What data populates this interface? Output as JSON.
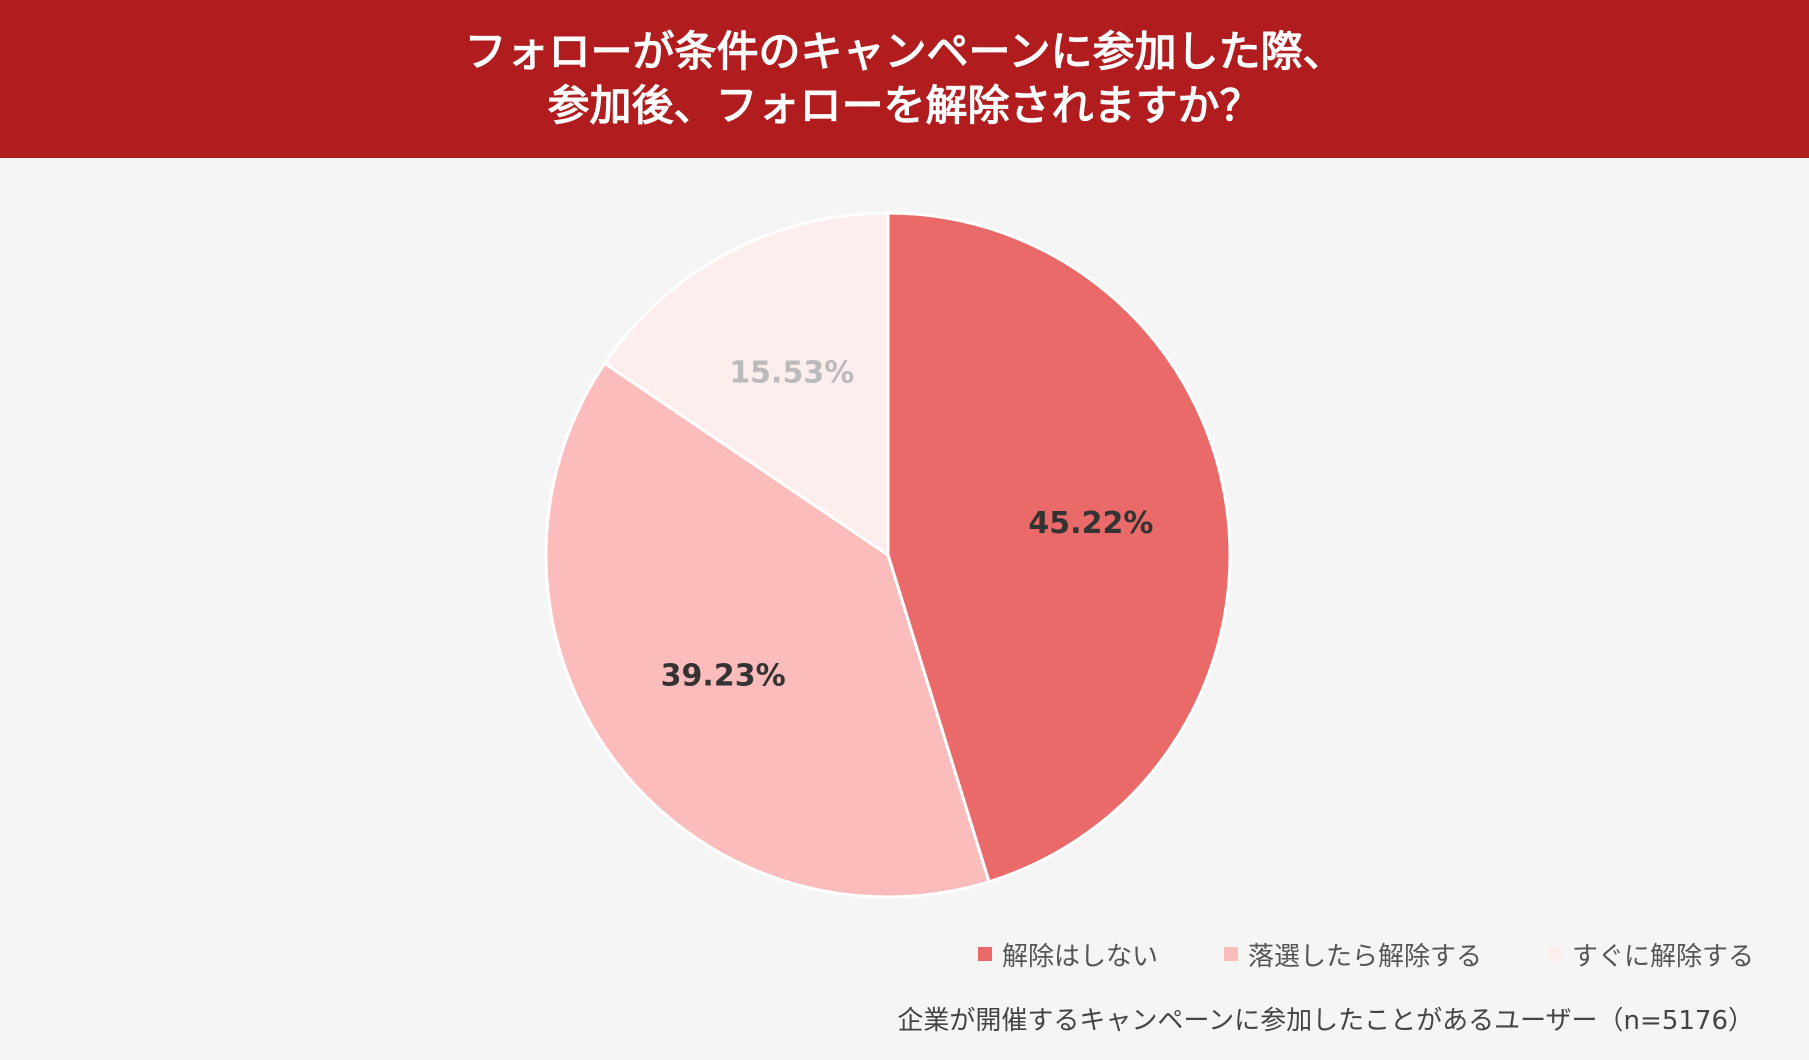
{
  "header": {
    "title_line1": "フォローが条件のキャンペーンに参加した際、",
    "title_line2": "参加後、フォローを解除されますか？",
    "background": "#b11d1f"
  },
  "chart_data": {
    "type": "pie",
    "title": "フォローが条件のキャンペーンに参加した際、参加後、フォローを解除されますか？",
    "slices": [
      {
        "label": "解除はしない",
        "value": 45.22,
        "display": "45.22%",
        "color": "#ea6a6a",
        "label_color": "#333333"
      },
      {
        "label": "落選したら解除する",
        "value": 39.23,
        "display": "39.23%",
        "color": "#fcbcbc",
        "label_color": "#333333"
      },
      {
        "label": "すぐに解除する",
        "value": 15.53,
        "display": "15.53%",
        "color": "#fdeeee",
        "label_color": "#bbbbbb"
      }
    ],
    "start_angle": "12 o'clock",
    "direction": "clockwise",
    "legend_position": "bottom-right"
  },
  "legend": {
    "items": [
      {
        "label": "解除はしない",
        "color": "#ea6a6a"
      },
      {
        "label": "落選したら解除する",
        "color": "#fcbcbc"
      },
      {
        "label": "すぐに解除する",
        "color": "#fdeeee"
      }
    ]
  },
  "footnote": "企業が開催するキャンペーンに参加したことがあるユーザー（n=5176）"
}
